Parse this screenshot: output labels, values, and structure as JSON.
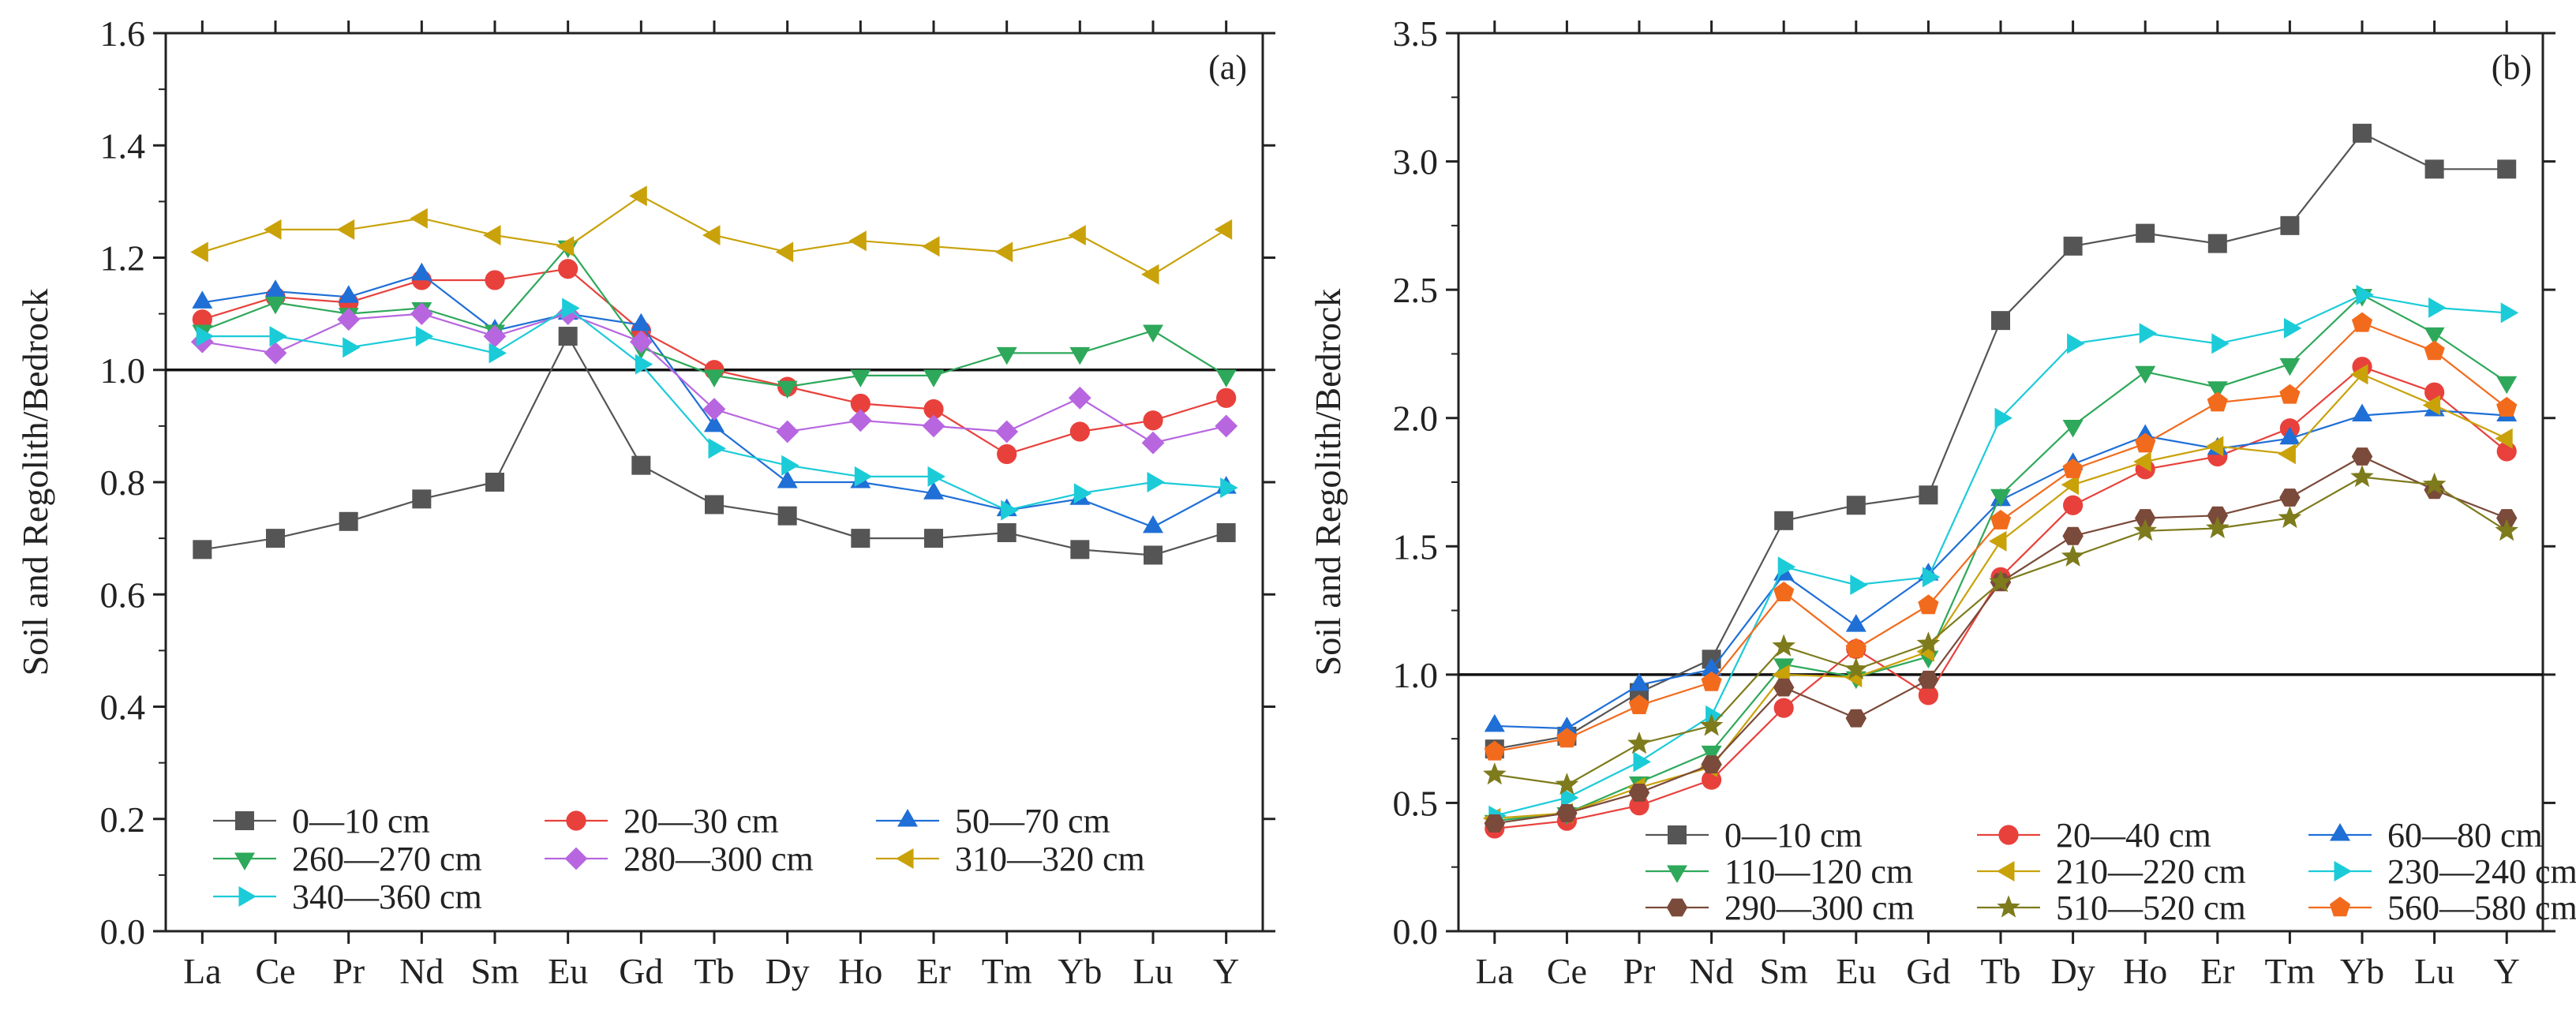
{
  "chart_data": [
    {
      "type": "line",
      "panel_tag": "(a)",
      "ylabel": "Soil and Regolith/Bedrock",
      "xlabel": "",
      "ylim": [
        0.0,
        1.6
      ],
      "yticks": [
        0.0,
        0.2,
        0.4,
        0.6,
        0.8,
        1.0,
        1.2,
        1.4,
        1.6
      ],
      "ytick_labels": [
        "0.0",
        "0.2",
        "0.4",
        "0.6",
        "0.8",
        "1.0",
        "1.2",
        "1.4",
        "1.6"
      ],
      "reference_line": 1.0,
      "categories": [
        "La",
        "Ce",
        "Pr",
        "Nd",
        "Sm",
        "Eu",
        "Gd",
        "Tb",
        "Dy",
        "Ho",
        "Er",
        "Tm",
        "Yb",
        "Lu",
        "Y"
      ],
      "legend_position": "bottom-left",
      "series": [
        {
          "name": "0—10 cm",
          "marker": "square",
          "color": "#555555",
          "values": [
            0.68,
            0.7,
            0.73,
            0.77,
            0.8,
            1.06,
            0.83,
            0.76,
            0.74,
            0.7,
            0.7,
            0.71,
            0.68,
            0.67,
            0.71
          ]
        },
        {
          "name": "20—30 cm",
          "marker": "circle",
          "color": "#e8413c",
          "values": [
            1.09,
            1.13,
            1.12,
            1.16,
            1.16,
            1.18,
            1.07,
            1.0,
            0.97,
            0.94,
            0.93,
            0.85,
            0.89,
            0.91,
            0.95
          ]
        },
        {
          "name": "50—70 cm",
          "marker": "triangle-up",
          "color": "#1f6fd6",
          "values": [
            1.12,
            1.14,
            1.13,
            1.17,
            1.07,
            1.1,
            1.08,
            0.9,
            0.8,
            0.8,
            0.78,
            0.75,
            0.77,
            0.72,
            0.79
          ]
        },
        {
          "name": "260—270 cm",
          "marker": "triangle-down",
          "color": "#2ea85a",
          "values": [
            1.07,
            1.12,
            1.1,
            1.11,
            1.07,
            1.22,
            1.04,
            0.99,
            0.97,
            0.99,
            0.99,
            1.03,
            1.03,
            1.07,
            0.99
          ]
        },
        {
          "name": "280—300 cm",
          "marker": "diamond",
          "color": "#b766e0",
          "values": [
            1.05,
            1.03,
            1.09,
            1.1,
            1.06,
            1.1,
            1.05,
            0.93,
            0.89,
            0.91,
            0.9,
            0.89,
            0.95,
            0.87,
            0.9
          ]
        },
        {
          "name": "310—320 cm",
          "marker": "triangle-left",
          "color": "#c9a20a",
          "values": [
            1.21,
            1.25,
            1.25,
            1.27,
            1.24,
            1.22,
            1.31,
            1.24,
            1.21,
            1.23,
            1.22,
            1.21,
            1.24,
            1.17,
            1.25
          ]
        },
        {
          "name": "340—360 cm",
          "marker": "triangle-right",
          "color": "#1ccbd8",
          "values": [
            1.06,
            1.06,
            1.04,
            1.06,
            1.03,
            1.11,
            1.01,
            0.86,
            0.83,
            0.81,
            0.81,
            0.75,
            0.78,
            0.8,
            0.79
          ]
        }
      ]
    },
    {
      "type": "line",
      "panel_tag": "(b)",
      "ylabel": "Soil and Regolith/Bedrock",
      "xlabel": "",
      "ylim": [
        0.0,
        3.5
      ],
      "yticks": [
        0.0,
        0.5,
        1.0,
        1.5,
        2.0,
        2.5,
        3.0,
        3.5
      ],
      "ytick_labels": [
        "0.0",
        "0.5",
        "1.0",
        "1.5",
        "2.0",
        "2.5",
        "3.0",
        "3.5"
      ],
      "reference_line": 1.0,
      "categories": [
        "La",
        "Ce",
        "Pr",
        "Nd",
        "Sm",
        "Eu",
        "Gd",
        "Tb",
        "Dy",
        "Ho",
        "Er",
        "Tm",
        "Yb",
        "Lu",
        "Y"
      ],
      "legend_position": "bottom-right",
      "series": [
        {
          "name": "0—10 cm",
          "marker": "square",
          "color": "#555555",
          "values": [
            0.71,
            0.76,
            0.93,
            1.06,
            1.6,
            1.66,
            1.7,
            2.38,
            2.67,
            2.72,
            2.68,
            2.75,
            3.11,
            2.97,
            2.97
          ]
        },
        {
          "name": "20—40 cm",
          "marker": "circle",
          "color": "#e8413c",
          "values": [
            0.4,
            0.43,
            0.49,
            0.59,
            0.87,
            1.1,
            0.92,
            1.38,
            1.66,
            1.8,
            1.85,
            1.96,
            2.2,
            2.1,
            1.87
          ]
        },
        {
          "name": "60—80 cm",
          "marker": "triangle-up",
          "color": "#1f6fd6",
          "values": [
            0.8,
            0.79,
            0.96,
            1.02,
            1.39,
            1.19,
            1.39,
            1.68,
            1.82,
            1.93,
            1.88,
            1.92,
            2.01,
            2.03,
            2.01
          ]
        },
        {
          "name": "110—120 cm",
          "marker": "triangle-down",
          "color": "#2ea85a",
          "values": [
            0.43,
            0.46,
            0.58,
            0.7,
            1.04,
            0.99,
            1.07,
            1.7,
            1.97,
            2.18,
            2.12,
            2.21,
            2.48,
            2.33,
            2.14
          ]
        },
        {
          "name": "210—220 cm",
          "marker": "triangle-left",
          "color": "#c9a20a",
          "values": [
            0.44,
            0.46,
            0.56,
            0.64,
            1.0,
            0.99,
            1.09,
            1.52,
            1.74,
            1.83,
            1.89,
            1.86,
            2.17,
            2.05,
            1.92
          ]
        },
        {
          "name": "230—240 cm",
          "marker": "triangle-right",
          "color": "#1ccbd8",
          "values": [
            0.45,
            0.52,
            0.66,
            0.84,
            1.42,
            1.35,
            1.38,
            2.0,
            2.29,
            2.33,
            2.29,
            2.35,
            2.48,
            2.43,
            2.41
          ]
        },
        {
          "name": "290—300 cm",
          "marker": "hexagon",
          "color": "#7a4a3a",
          "values": [
            0.42,
            0.46,
            0.54,
            0.65,
            0.95,
            0.83,
            0.98,
            1.36,
            1.54,
            1.61,
            1.62,
            1.69,
            1.85,
            1.72,
            1.61
          ]
        },
        {
          "name": "510—520 cm",
          "marker": "star",
          "color": "#7d7b1c",
          "values": [
            0.61,
            0.57,
            0.73,
            0.8,
            1.11,
            1.02,
            1.12,
            1.36,
            1.46,
            1.56,
            1.57,
            1.61,
            1.77,
            1.74,
            1.56
          ]
        },
        {
          "name": "560—580 cm",
          "marker": "pentagon",
          "color": "#f26b1d",
          "values": [
            0.7,
            0.75,
            0.88,
            0.97,
            1.32,
            1.1,
            1.27,
            1.6,
            1.8,
            1.9,
            2.06,
            2.09,
            2.37,
            2.26,
            2.04
          ]
        }
      ]
    }
  ]
}
